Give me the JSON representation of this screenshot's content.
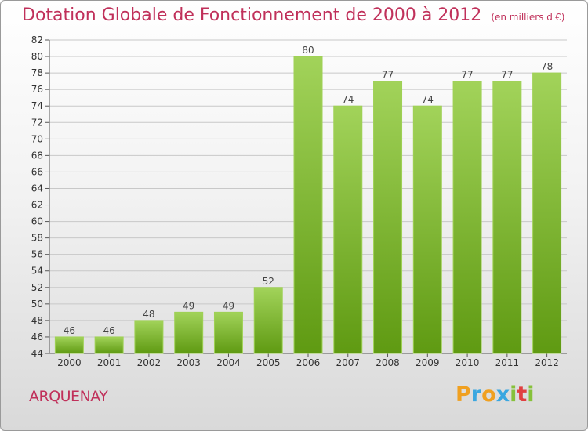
{
  "chart_data": {
    "type": "bar",
    "title": "Dotation Globale de Fonctionnement de 2000 à 2012",
    "subtitle": "(en milliers d'€)",
    "categories": [
      "2000",
      "2001",
      "2002",
      "2003",
      "2004",
      "2005",
      "2006",
      "2007",
      "2008",
      "2009",
      "2010",
      "2011",
      "2012"
    ],
    "values": [
      46,
      46,
      48,
      49,
      49,
      52,
      80,
      74,
      77,
      74,
      77,
      77,
      78
    ],
    "ylim": [
      44,
      82
    ],
    "ytick_step": 2,
    "xlabel": "",
    "ylabel": "",
    "grid": true,
    "legend": "none",
    "bar_color": "#7cb72e",
    "bar_highlight": "#9fd155"
  },
  "footer": {
    "location": "ARQUENAY",
    "brand_letters": [
      "P",
      "r",
      "o",
      "x",
      "i",
      "t",
      "i"
    ],
    "brand_colors": [
      "#f0a020",
      "#3aa7e0",
      "#f0a020",
      "#3aa7e0",
      "#86c13a",
      "#e04040",
      "#86c13a"
    ]
  },
  "colors": {
    "title": "#c0305a",
    "axis": "#555555",
    "grid": "#c8c8c8"
  }
}
